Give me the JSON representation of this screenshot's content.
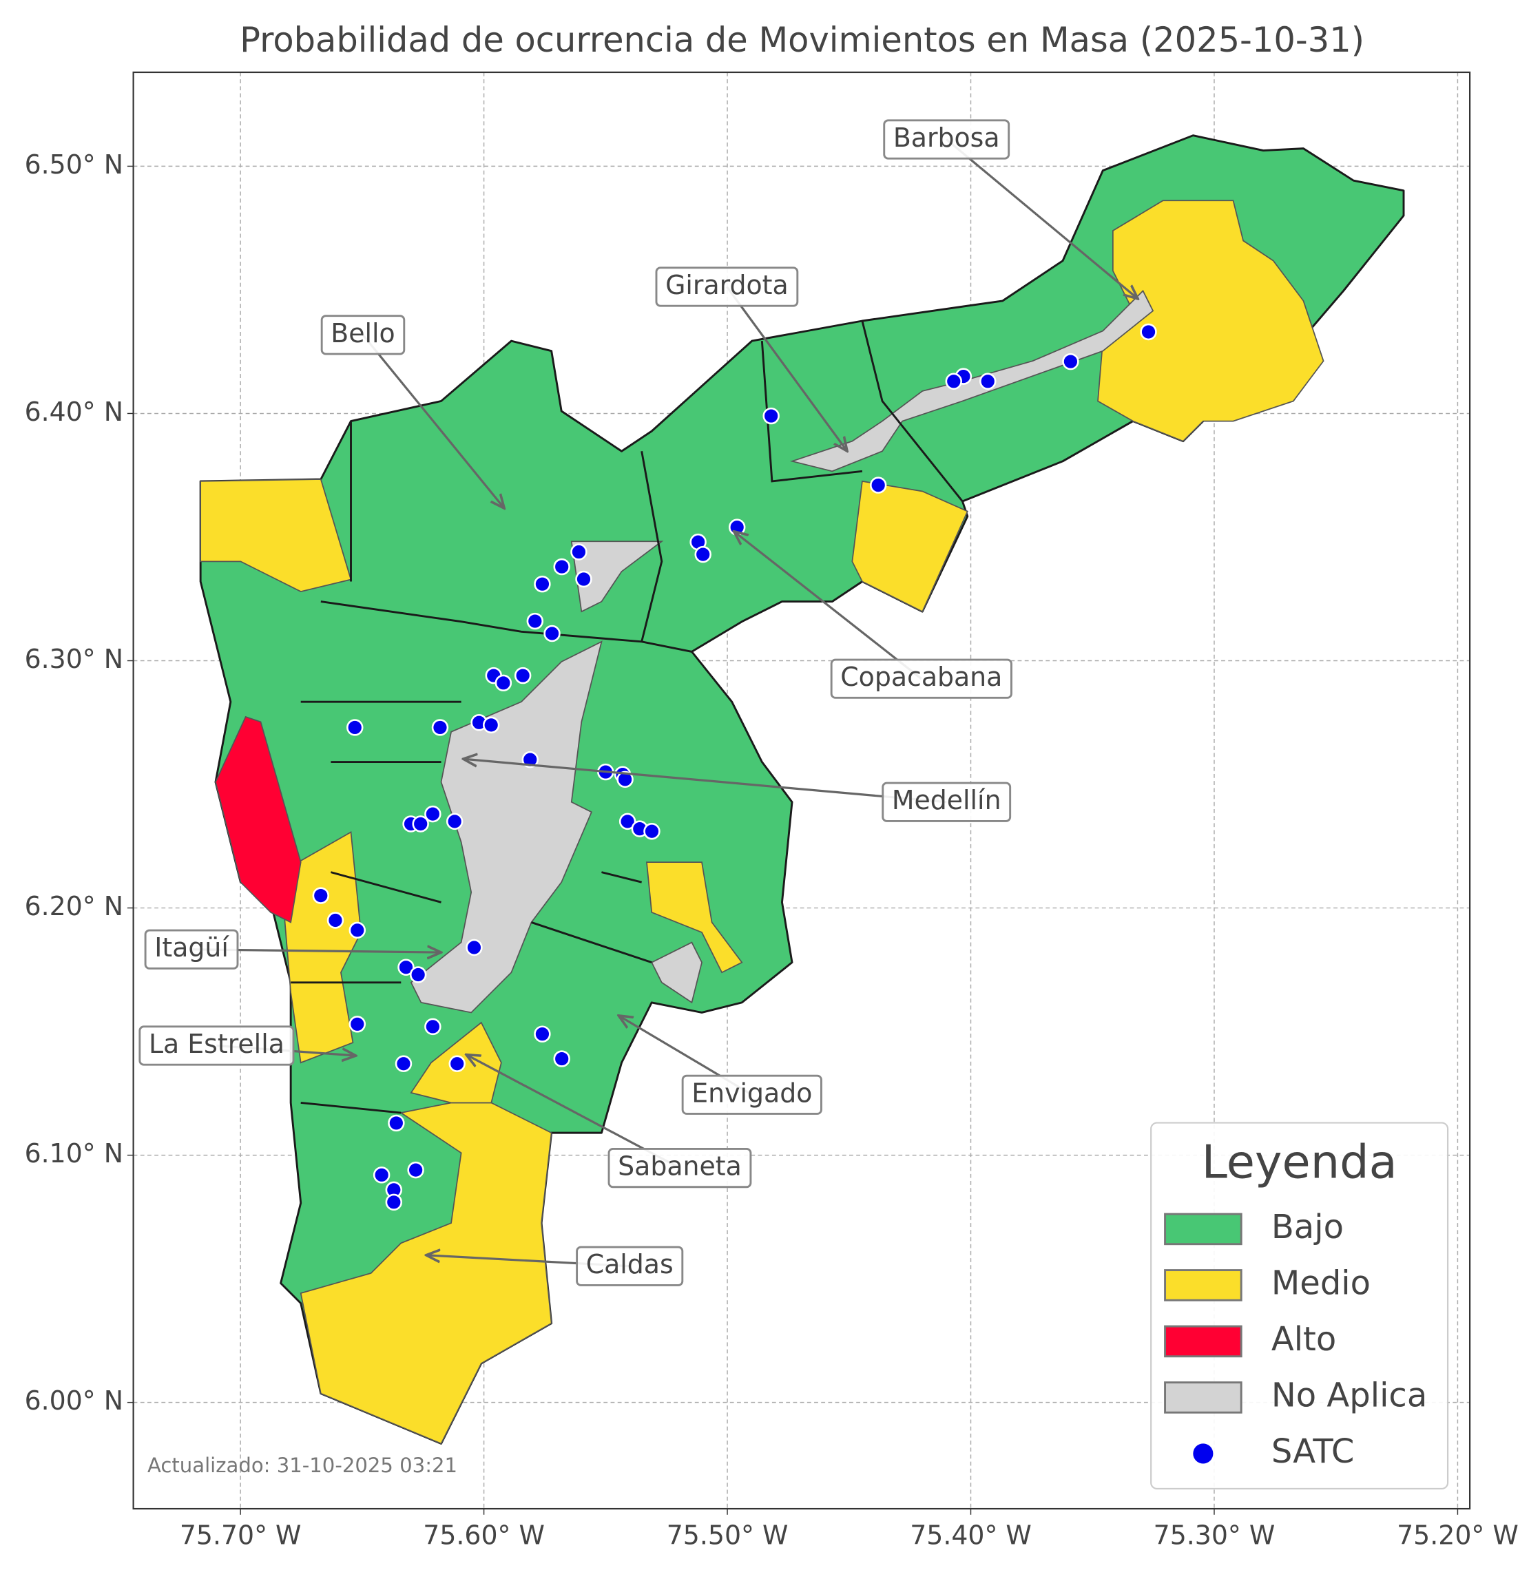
{
  "chart_data": {
    "type": "map",
    "title": "Probabilidad de ocurrencia de Movimientos en Masa (2025-10-31)",
    "xlim": [
      -75.744,
      -75.195
    ],
    "ylim": [
      5.957,
      6.538
    ],
    "xticks": [
      {
        "value": -75.7,
        "label": "75.70° W"
      },
      {
        "value": -75.6,
        "label": "75.60° W"
      },
      {
        "value": -75.5,
        "label": "75.50° W"
      },
      {
        "value": -75.4,
        "label": "75.40° W"
      },
      {
        "value": -75.3,
        "label": "75.30° W"
      },
      {
        "value": -75.2,
        "label": "75.20° W"
      }
    ],
    "yticks": [
      {
        "value": 6.0,
        "label": "6.00° N"
      },
      {
        "value": 6.1,
        "label": "6.10° N"
      },
      {
        "value": 6.2,
        "label": "6.20° N"
      },
      {
        "value": 6.3,
        "label": "6.30° N"
      },
      {
        "value": 6.4,
        "label": "6.40° N"
      },
      {
        "value": 6.5,
        "label": "6.50° N"
      }
    ],
    "grid": true,
    "series": [
      {
        "name": "SATC",
        "color": "#0000ee",
        "x": [
          -75.327,
          -75.359,
          -75.393,
          -75.403,
          -75.407,
          -75.482,
          -75.438,
          -75.496,
          -75.512,
          -75.51,
          -75.561,
          -75.568,
          -75.559,
          -75.576,
          -75.579,
          -75.572,
          -75.596,
          -75.592,
          -75.584,
          -75.653,
          -75.618,
          -75.602,
          -75.597,
          -75.581,
          -75.55,
          -75.543,
          -75.542,
          -75.63,
          -75.626,
          -75.621,
          -75.612,
          -75.541,
          -75.536,
          -75.531,
          -75.667,
          -75.661,
          -75.652,
          -75.604,
          -75.632,
          -75.627,
          -75.652,
          -75.621,
          -75.576,
          -75.568,
          -75.633,
          -75.611,
          -75.636,
          -75.642,
          -75.628,
          -75.637,
          -75.637
        ],
        "y": [
          6.433,
          6.421,
          6.413,
          6.415,
          6.413,
          6.399,
          6.371,
          6.354,
          6.348,
          6.343,
          6.344,
          6.338,
          6.333,
          6.331,
          6.316,
          6.311,
          6.294,
          6.291,
          6.294,
          6.273,
          6.273,
          6.275,
          6.274,
          6.26,
          6.255,
          6.254,
          6.252,
          6.234,
          6.234,
          6.238,
          6.235,
          6.235,
          6.232,
          6.231,
          6.205,
          6.195,
          6.191,
          6.184,
          6.176,
          6.173,
          6.153,
          6.152,
          6.149,
          6.139,
          6.137,
          6.137,
          6.113,
          6.092,
          6.094,
          6.086,
          6.081
        ]
      }
    ],
    "legend": {
      "title": "Leyenda",
      "items": [
        {
          "name": "Bajo",
          "color": "#48c774"
        },
        {
          "name": "Medio",
          "color": "#fbde2a"
        },
        {
          "name": "Alto",
          "color": "#ff0033"
        },
        {
          "name": "No Aplica",
          "color": "#d3d3d3"
        }
      ]
    },
    "annotations": [
      {
        "text": "Barbosa"
      },
      {
        "text": "Girardota"
      },
      {
        "text": "Bello"
      },
      {
        "text": "Copacabana"
      },
      {
        "text": "Medellín"
      },
      {
        "text": "Itagüí"
      },
      {
        "text": "La Estrella"
      },
      {
        "text": "Envigado"
      },
      {
        "text": "Sabaneta"
      },
      {
        "text": "Caldas"
      }
    ],
    "footnote": "Actualizado: 31-10-2025 03:21"
  }
}
